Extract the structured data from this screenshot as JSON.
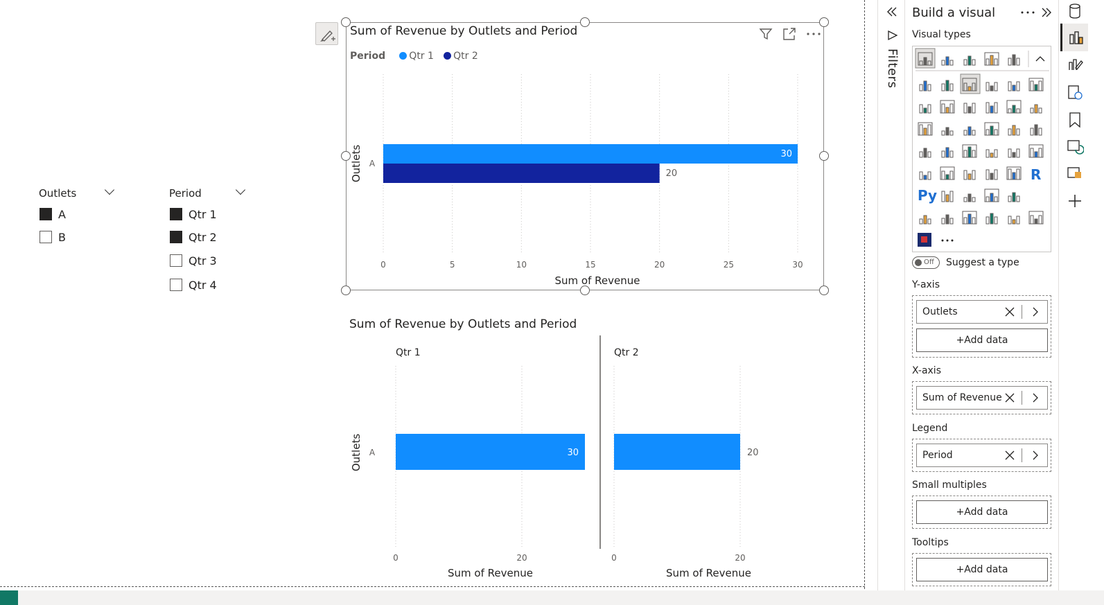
{
  "slicers": [
    {
      "title": "Outlets",
      "items": [
        {
          "label": "A",
          "checked": true
        },
        {
          "label": "B",
          "checked": false
        }
      ]
    },
    {
      "title": "Period",
      "items": [
        {
          "label": "Qtr 1",
          "checked": true
        },
        {
          "label": "Qtr 2",
          "checked": true
        },
        {
          "label": "Qtr 3",
          "checked": false
        },
        {
          "label": "Qtr 4",
          "checked": false
        }
      ]
    }
  ],
  "colors": {
    "qtr1": "#118dff",
    "qtr2": "#12239e",
    "accent": "#117865"
  },
  "chart_data": [
    {
      "type": "bar",
      "orientation": "horizontal",
      "title": "Sum of Revenue by Outlets and Period",
      "legend_title": "Period",
      "legend_position": "top-left",
      "categories": [
        "A"
      ],
      "series": [
        {
          "name": "Qtr 1",
          "values": [
            30
          ]
        },
        {
          "name": "Qtr 2",
          "values": [
            20
          ]
        }
      ],
      "xlabel": "Sum of Revenue",
      "ylabel": "Outlets",
      "xlim": [
        0,
        30
      ],
      "xticks": [
        "0",
        "5",
        "10",
        "15",
        "20",
        "25",
        "30"
      ],
      "grid": true
    },
    {
      "type": "bar",
      "orientation": "horizontal",
      "layout": "small-multiples",
      "title": "Sum of Revenue by Outlets and Period",
      "categories": [
        "A"
      ],
      "panels": [
        {
          "name": "Qtr 1",
          "values": [
            30
          ],
          "xlabel": "Sum of Revenue",
          "xticks": [
            "0",
            "20"
          ]
        },
        {
          "name": "Qtr 2",
          "values": [
            20
          ],
          "xlabel": "Sum of Revenue",
          "xticks": [
            "0",
            "20"
          ]
        }
      ],
      "ylabel": "Outlets",
      "xlim": [
        0,
        30
      ],
      "grid": true
    }
  ],
  "filters_pane": {
    "label": "Filters"
  },
  "build_pane": {
    "title": "Build a visual",
    "visual_types_label": "Visual types",
    "suggest_toggle": "Off",
    "suggest_label": "Suggest a type",
    "more_icon": "R",
    "python_icon": "Py",
    "wells": [
      {
        "label": "Y-axis",
        "field": "Outlets",
        "add": "+Add data"
      },
      {
        "label": "X-axis",
        "field": "Sum of Revenue"
      },
      {
        "label": "Legend",
        "field": "Period"
      },
      {
        "label": "Small multiples",
        "add": "+Add data"
      },
      {
        "label": "Tooltips",
        "add": "+Add data"
      }
    ]
  }
}
